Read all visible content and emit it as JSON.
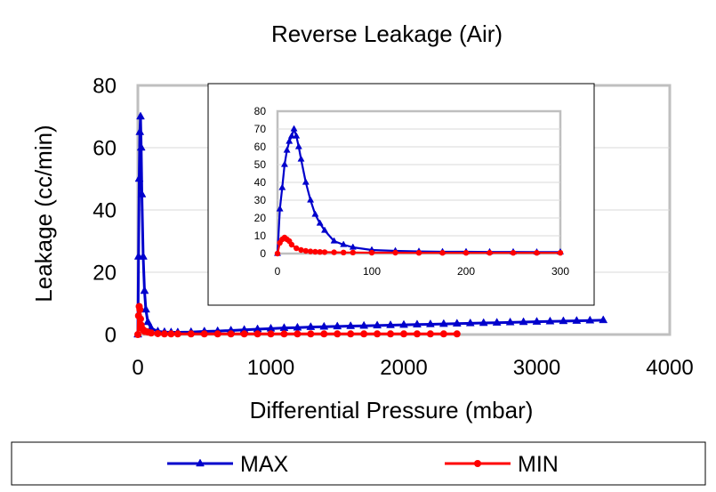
{
  "chart_data": [
    {
      "type": "line",
      "title": "Reverse Leakage (Air)",
      "xlabel": "Differential Pressure (mbar)",
      "ylabel": "Leakage (cc/min)",
      "xlim": [
        0,
        4000
      ],
      "ylim": [
        0,
        80
      ],
      "x_ticks": [
        0,
        1000,
        2000,
        3000,
        4000
      ],
      "y_ticks": [
        0,
        20,
        40,
        60,
        80
      ],
      "grid": "horizontal",
      "legend": "bottom",
      "series": [
        {
          "name": "MAX",
          "color": "#0000CC",
          "marker": "triangle",
          "x": [
            0,
            5,
            10,
            15,
            20,
            25,
            30,
            40,
            50,
            60,
            75,
            100,
            150,
            200,
            250,
            300,
            400,
            500,
            600,
            700,
            800,
            900,
            1000,
            1100,
            1200,
            1300,
            1400,
            1500,
            1600,
            1700,
            1800,
            1900,
            2000,
            2100,
            2200,
            2300,
            2400,
            2500,
            2600,
            2700,
            2800,
            2900,
            3000,
            3100,
            3200,
            3300,
            3400,
            3500
          ],
          "y": [
            0,
            25,
            50,
            65,
            70,
            60,
            45,
            25,
            14,
            8,
            4,
            2,
            1,
            0.8,
            0.7,
            0.7,
            0.8,
            1,
            1.1,
            1.3,
            1.5,
            1.7,
            1.9,
            2.1,
            2.2,
            2.4,
            2.5,
            2.6,
            2.7,
            2.8,
            2.9,
            3,
            3.1,
            3.2,
            3.3,
            3.4,
            3.5,
            3.6,
            3.7,
            3.8,
            3.9,
            4,
            4.1,
            4.2,
            4.3,
            4.4,
            4.5,
            4.6
          ]
        },
        {
          "name": "MIN",
          "color": "#FF0000",
          "marker": "circle",
          "x": [
            0,
            5,
            10,
            15,
            20,
            25,
            30,
            40,
            50,
            60,
            75,
            100,
            150,
            200,
            250,
            300,
            400,
            500,
            600,
            700,
            800,
            900,
            1000,
            1100,
            1200,
            1300,
            1400,
            1500,
            1600,
            1700,
            1800,
            1900,
            2000,
            2100,
            2200,
            2300,
            2400
          ],
          "y": [
            0,
            6,
            9,
            8,
            5,
            3,
            2,
            1.5,
            1,
            1,
            0.8,
            0.5,
            0.3,
            0.2,
            0.2,
            0.2,
            0.2,
            0.2,
            0.2,
            0.2,
            0.2,
            0.2,
            0.2,
            0.2,
            0.2,
            0.2,
            0.2,
            0.2,
            0.2,
            0.2,
            0.2,
            0.2,
            0.2,
            0.2,
            0.2,
            0.2,
            0.2
          ]
        }
      ]
    },
    {
      "type": "line",
      "title": "",
      "xlim": [
        0,
        300
      ],
      "ylim": [
        0,
        80
      ],
      "x_ticks": [
        0,
        100,
        200,
        300
      ],
      "y_ticks": [
        0,
        10,
        20,
        30,
        40,
        50,
        60,
        70,
        80
      ],
      "grid": "horizontal",
      "series": [
        {
          "name": "MAX",
          "color": "#0000CC",
          "marker": "triangle",
          "x": [
            0,
            2.5,
            5,
            7.5,
            10,
            12.5,
            15,
            17.5,
            20,
            22.5,
            25,
            30,
            35,
            40,
            45,
            50,
            60,
            70,
            80,
            100,
            125,
            150,
            175,
            200,
            225,
            250,
            275,
            300
          ],
          "y": [
            0,
            25,
            37,
            50,
            58,
            63,
            66,
            70,
            66,
            60,
            53,
            40,
            30,
            22,
            17,
            13,
            7,
            5,
            3.5,
            2,
            1.5,
            1.2,
            1,
            1,
            0.9,
            0.9,
            0.8,
            0.8
          ]
        },
        {
          "name": "MIN",
          "color": "#FF0000",
          "marker": "circle",
          "x": [
            0,
            2.5,
            5,
            7.5,
            10,
            12.5,
            15,
            20,
            25,
            30,
            35,
            40,
            45,
            50,
            60,
            70,
            80,
            100,
            125,
            150,
            175,
            200,
            225,
            250,
            275,
            300
          ],
          "y": [
            0,
            6,
            8,
            9,
            8,
            7,
            5,
            3,
            2,
            1.5,
            1.2,
            1,
            0.9,
            0.8,
            0.7,
            0.6,
            0.6,
            0.5,
            0.5,
            0.4,
            0.4,
            0.4,
            0.4,
            0.4,
            0.4,
            0.4
          ]
        }
      ]
    }
  ],
  "legend": {
    "items": [
      {
        "label": "MAX",
        "color": "#0000CC",
        "marker": "triangle"
      },
      {
        "label": "MIN",
        "color": "#FF0000",
        "marker": "circle"
      }
    ]
  }
}
